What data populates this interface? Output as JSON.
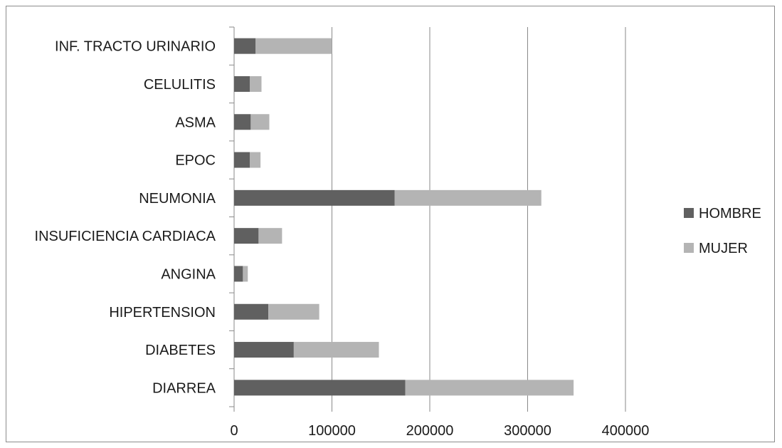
{
  "chart_data": {
    "type": "bar",
    "orientation": "horizontal",
    "stacked": true,
    "categories": [
      "DIARREA",
      "DIABETES",
      "HIPERTENSION",
      "ANGINA",
      "INSUFICIENCIA CARDIACA",
      "NEUMONIA",
      "EPOC",
      "ASMA",
      "CELULITIS",
      "INF. TRACTO URINARIO"
    ],
    "series": [
      {
        "name": "HOMBRE",
        "color": "#606060",
        "values": [
          175000,
          61000,
          35000,
          9000,
          25000,
          164000,
          16000,
          17000,
          16000,
          22000
        ]
      },
      {
        "name": "MUJER",
        "color": "#b4b4b4",
        "values": [
          172000,
          87000,
          52000,
          5000,
          24000,
          150000,
          11000,
          19000,
          12000,
          78000
        ]
      }
    ],
    "xlim": [
      0,
      400000
    ],
    "x_ticks": [
      0,
      100000,
      200000,
      300000,
      400000
    ],
    "grid": "vertical",
    "legend_position": "right",
    "title": "",
    "xlabel": "",
    "ylabel": ""
  }
}
